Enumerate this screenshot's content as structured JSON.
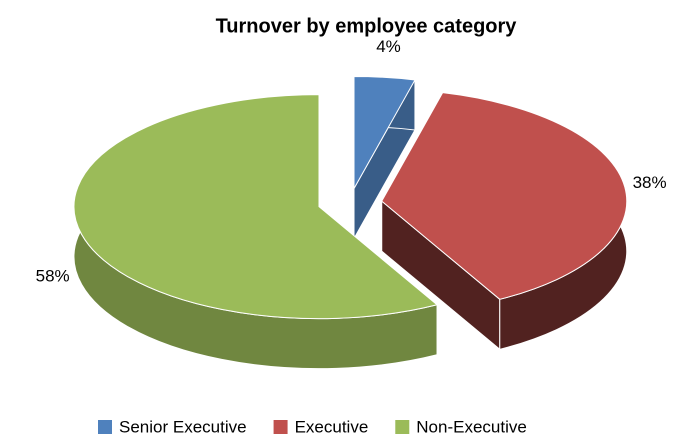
{
  "chart_data": {
    "type": "pie",
    "title": "Turnover by employee category",
    "categories": [
      "Senior Executive",
      "Executive",
      "Non-Executive"
    ],
    "values": [
      4,
      38,
      58
    ],
    "value_labels": [
      "4%",
      "38%",
      "58%"
    ],
    "colors": [
      "#4f81bd",
      "#c0504d",
      "#9bbb59"
    ],
    "legend": "bottom"
  }
}
